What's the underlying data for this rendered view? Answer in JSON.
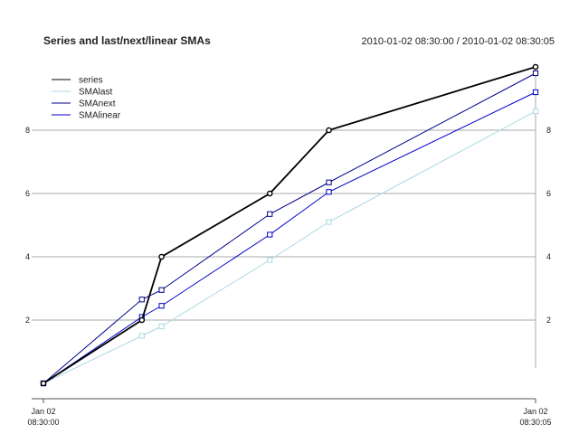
{
  "chart_data": {
    "type": "line",
    "title": "Series and last/next/linear SMAs",
    "subtitle": "2010-01-02 08:30:00 / 2010-01-02 08:30:05",
    "x_ticks": [
      {
        "x": 0,
        "label_line1": "Jan 02",
        "label_line2": "08:30:00"
      },
      {
        "x": 5,
        "label_line1": "Jan 02",
        "label_line2": "08:30:05"
      }
    ],
    "y_ticks": [
      2,
      4,
      6,
      8
    ],
    "xlim": [
      0,
      5
    ],
    "ylim": [
      0,
      10
    ],
    "grid": true,
    "legend_placement": "top-left",
    "series": [
      {
        "name": "series",
        "color": "#000000",
        "marker": "circle",
        "x": [
          0,
          1,
          1.2,
          2.3,
          2.9,
          5
        ],
        "y": [
          0,
          2,
          4,
          6,
          8,
          10
        ]
      },
      {
        "name": "SMAlast",
        "color": "#add8e6",
        "marker": "square",
        "x": [
          0,
          1,
          1.2,
          2.3,
          2.9,
          5
        ],
        "y": [
          0,
          1.5,
          1.8,
          3.9,
          5.1,
          8.6
        ]
      },
      {
        "name": "SMAnext",
        "color": "#00008b",
        "marker": "square",
        "x": [
          0,
          1,
          1.2,
          2.3,
          2.9,
          5
        ],
        "y": [
          0,
          2.65,
          2.95,
          5.35,
          6.35,
          9.8
        ]
      },
      {
        "name": "SMAlinear",
        "color": "#0000cd",
        "marker": "square",
        "x": [
          0,
          1,
          1.2,
          2.3,
          2.9,
          5
        ],
        "y": [
          0,
          2.1,
          2.45,
          4.7,
          6.05,
          9.2
        ]
      }
    ]
  }
}
